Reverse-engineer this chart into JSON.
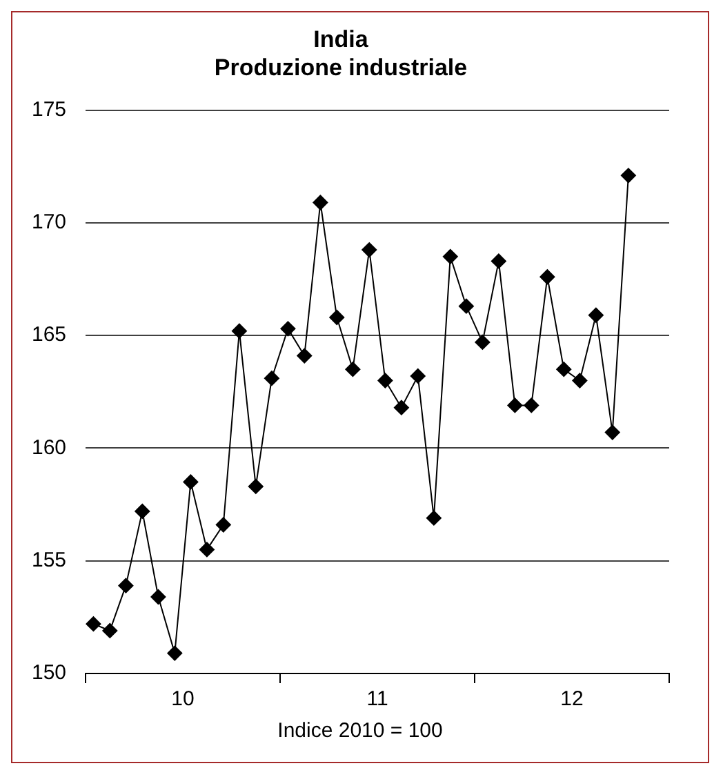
{
  "chart_data": {
    "type": "line",
    "title": "India\nProduzione industriale",
    "x": [
      "2010-01-16",
      "2010-02-15",
      "2010-03-16",
      "2010-04-16",
      "2010-05-16",
      "2010-06-16",
      "2010-07-16",
      "2010-08-16",
      "2010-09-16",
      "2010-10-16",
      "2010-11-16",
      "2010-12-16",
      "2011-01-16",
      "2011-02-15",
      "2011-03-16",
      "2011-04-16",
      "2011-05-16",
      "2011-06-16",
      "2011-07-16",
      "2011-08-16",
      "2011-09-16",
      "2011-10-16",
      "2011-11-16",
      "2011-12-16",
      "2012-01-16",
      "2012-02-15",
      "2012-03-16",
      "2012-04-16",
      "2012-05-16",
      "2012-06-16",
      "2012-07-16",
      "2012-08-16",
      "2012-09-16",
      "2012-10-16"
    ],
    "series": [
      {
        "color": "#000000",
        "values": [
          152.2,
          151.9,
          153.9,
          157.2,
          153.4,
          150.9,
          158.5,
          155.5,
          156.6,
          165.2,
          158.3,
          163.1,
          165.3,
          164.1,
          170.9,
          165.8,
          163.5,
          168.8,
          163.0,
          161.8,
          163.2,
          156.9,
          168.5,
          166.3,
          164.7,
          168.3,
          161.9,
          161.9,
          167.6,
          163.5,
          163.0,
          165.9,
          160.7,
          172.1
        ]
      }
    ],
    "xlim": [
      "2010-01-01",
      "2013-01-01"
    ],
    "xticks": [
      {
        "value": "2010-01-01",
        "label": null
      },
      {
        "value": "2010-07-01",
        "label": "10"
      },
      {
        "value": "2011-01-01",
        "label": null
      },
      {
        "value": "2011-07-01",
        "label": "11"
      },
      {
        "value": "2012-01-01",
        "label": null
      },
      {
        "value": "2012-07-01",
        "label": "12"
      },
      {
        "value": "2013-01-01",
        "label": null
      }
    ],
    "ylim": [
      150,
      175
    ],
    "yticks": [
      150,
      155,
      160,
      165,
      170,
      175
    ],
    "grid": "y",
    "legend": false,
    "marker": "diamond",
    "line_style": "solid",
    "annotations": [
      "Indice 2010 = 100"
    ]
  }
}
